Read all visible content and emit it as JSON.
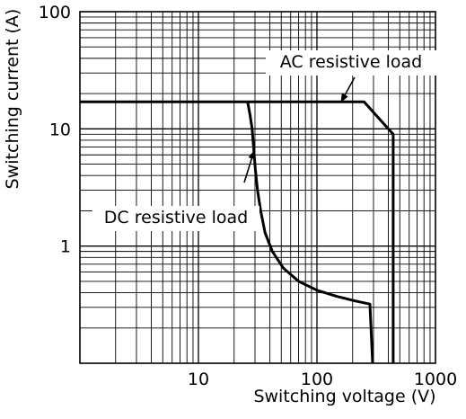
{
  "chart_data": {
    "type": "line",
    "xscale": "log",
    "yscale": "log",
    "xlim": [
      1,
      1000
    ],
    "ylim": [
      0.1,
      100
    ],
    "xlabel": "Switching voltage (V)",
    "ylabel": "Switching current (A)",
    "x_ticks": [
      {
        "value": 10,
        "label": "10"
      },
      {
        "value": 100,
        "label": "100"
      },
      {
        "value": 1000,
        "label": "1000"
      }
    ],
    "y_ticks": [
      {
        "value": 1,
        "label": "1"
      },
      {
        "value": 10,
        "label": "10"
      },
      {
        "value": 100,
        "label": "100"
      }
    ],
    "grid": true,
    "series": [
      {
        "name": "AC resistive load",
        "points": [
          [
            1,
            17
          ],
          [
            250,
            17
          ],
          [
            440,
            9
          ],
          [
            440,
            0.1
          ]
        ]
      },
      {
        "name": "DC resistive load",
        "points": [
          [
            26,
            17
          ],
          [
            27.3,
            13
          ],
          [
            28.4,
            10
          ],
          [
            29.2,
            7
          ],
          [
            30.2,
            4.5
          ],
          [
            31.5,
            3
          ],
          [
            33.5,
            2
          ],
          [
            36.5,
            1.3
          ],
          [
            42,
            0.9
          ],
          [
            52,
            0.65
          ],
          [
            70,
            0.5
          ],
          [
            100,
            0.42
          ],
          [
            150,
            0.37
          ],
          [
            210,
            0.34
          ],
          [
            280,
            0.32
          ],
          [
            295,
            0.1
          ]
        ]
      }
    ],
    "annotations": [
      {
        "text": "AC resistive load",
        "target": [
          160,
          17
        ]
      },
      {
        "text": "DC resistive load",
        "target": [
          29.5,
          6.5
        ]
      }
    ]
  }
}
